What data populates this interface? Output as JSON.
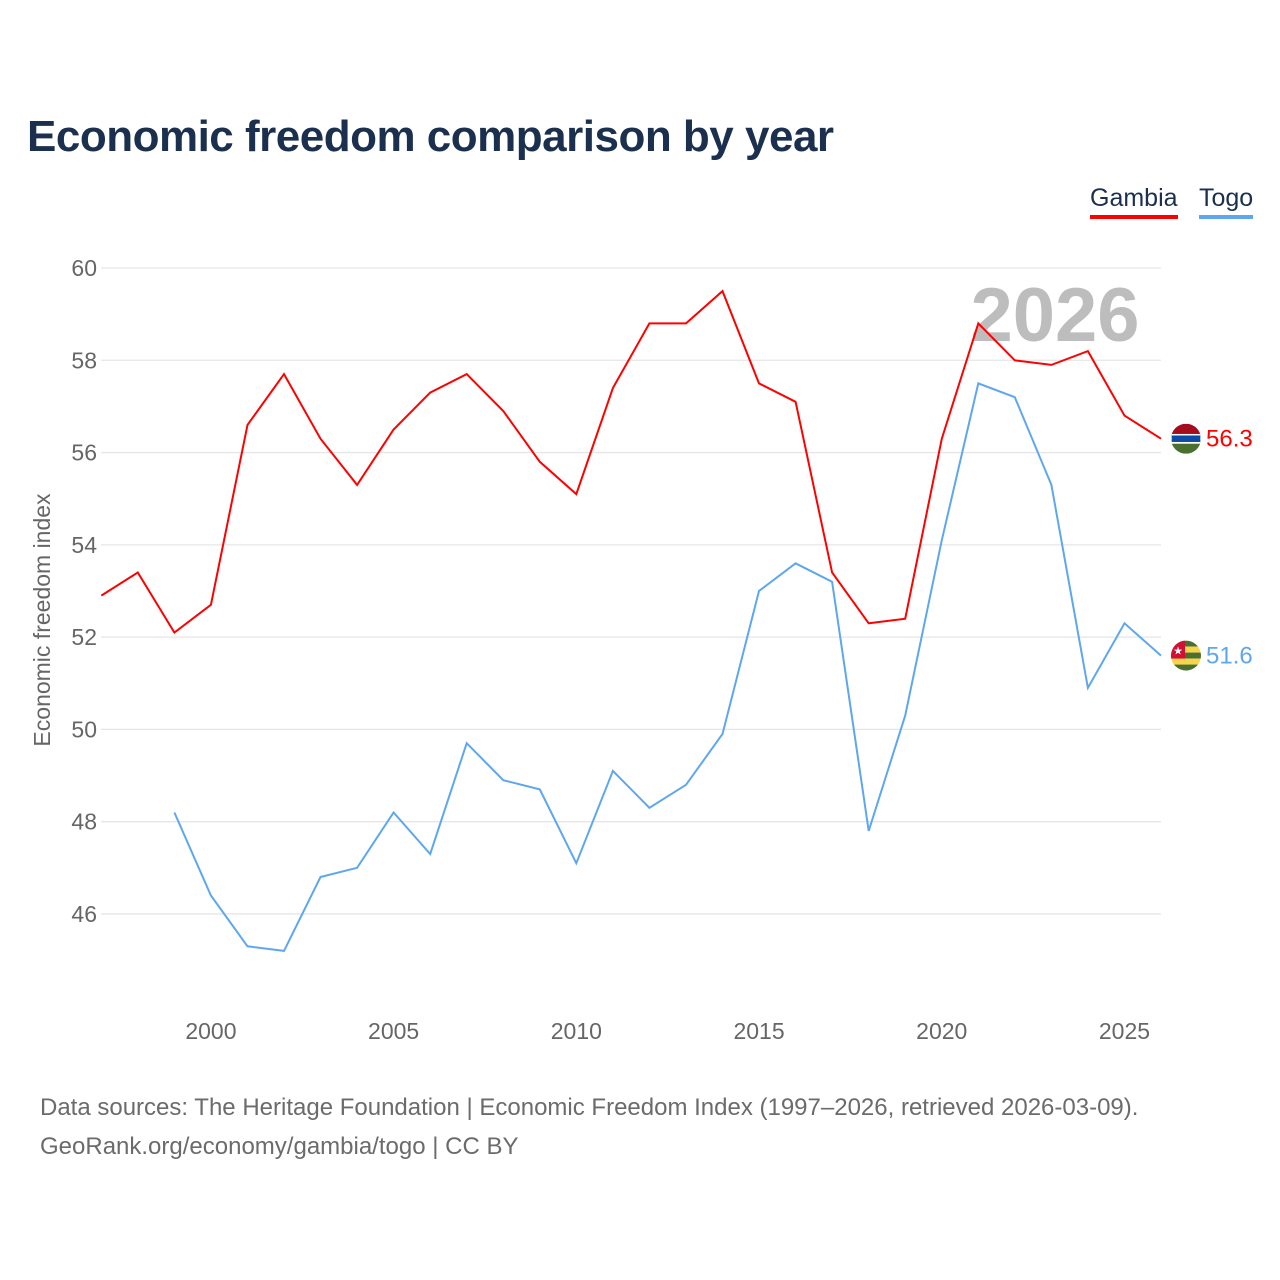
{
  "title": "Economic freedom comparison by year",
  "legend": [
    {
      "label": "Gambia",
      "color": "#ff0000"
    },
    {
      "label": "Togo",
      "color": "#5ea7ee"
    }
  ],
  "watermark_year": "2026",
  "source": {
    "line1": "Data sources: The Heritage Foundation | Economic Freedom Index (1997–2026, retrieved 2026-03-09).",
    "line2": "GeoRank.org/economy/gambia/togo | CC BY"
  },
  "chart_data": {
    "type": "line",
    "title": "Economic freedom comparison by year",
    "xlabel": "",
    "ylabel": "Economic freedom index",
    "xlim": [
      1997,
      2026
    ],
    "ylim": [
      44,
      60
    ],
    "yticks": [
      46,
      48,
      50,
      52,
      54,
      56,
      58,
      60
    ],
    "xticks": [
      2000,
      2005,
      2010,
      2015,
      2020,
      2025
    ],
    "grid": true,
    "legend_position": "top-right",
    "series": [
      {
        "name": "Gambia",
        "color": "#ff0000",
        "end_label": "56.3",
        "flag": "gambia-flag",
        "x": [
          1997,
          1998,
          1999,
          2000,
          2001,
          2002,
          2003,
          2004,
          2005,
          2006,
          2007,
          2008,
          2009,
          2010,
          2011,
          2012,
          2013,
          2014,
          2015,
          2016,
          2017,
          2018,
          2019,
          2020,
          2021,
          2022,
          2023,
          2024,
          2025,
          2026
        ],
        "values": [
          52.9,
          53.4,
          52.1,
          52.7,
          56.6,
          57.7,
          56.3,
          55.3,
          56.5,
          57.3,
          57.7,
          56.9,
          55.8,
          55.1,
          57.4,
          58.8,
          58.8,
          59.5,
          57.5,
          57.1,
          53.4,
          52.3,
          52.4,
          56.3,
          58.8,
          58.0,
          57.9,
          58.2,
          56.8,
          56.3
        ]
      },
      {
        "name": "Togo",
        "color": "#5ea7ee",
        "end_label": "51.6",
        "flag": "togo-flag",
        "x": [
          1999,
          2000,
          2001,
          2002,
          2003,
          2004,
          2005,
          2006,
          2007,
          2008,
          2009,
          2010,
          2011,
          2012,
          2013,
          2014,
          2015,
          2016,
          2017,
          2018,
          2019,
          2020,
          2021,
          2022,
          2023,
          2024,
          2025,
          2026
        ],
        "values": [
          48.2,
          46.4,
          45.3,
          45.2,
          46.8,
          47.0,
          48.2,
          47.3,
          49.7,
          48.9,
          48.7,
          47.1,
          49.1,
          48.3,
          48.8,
          49.9,
          53.0,
          53.6,
          53.2,
          47.8,
          50.3,
          54.1,
          57.5,
          57.2,
          55.3,
          50.9,
          52.3,
          51.6
        ]
      }
    ]
  }
}
